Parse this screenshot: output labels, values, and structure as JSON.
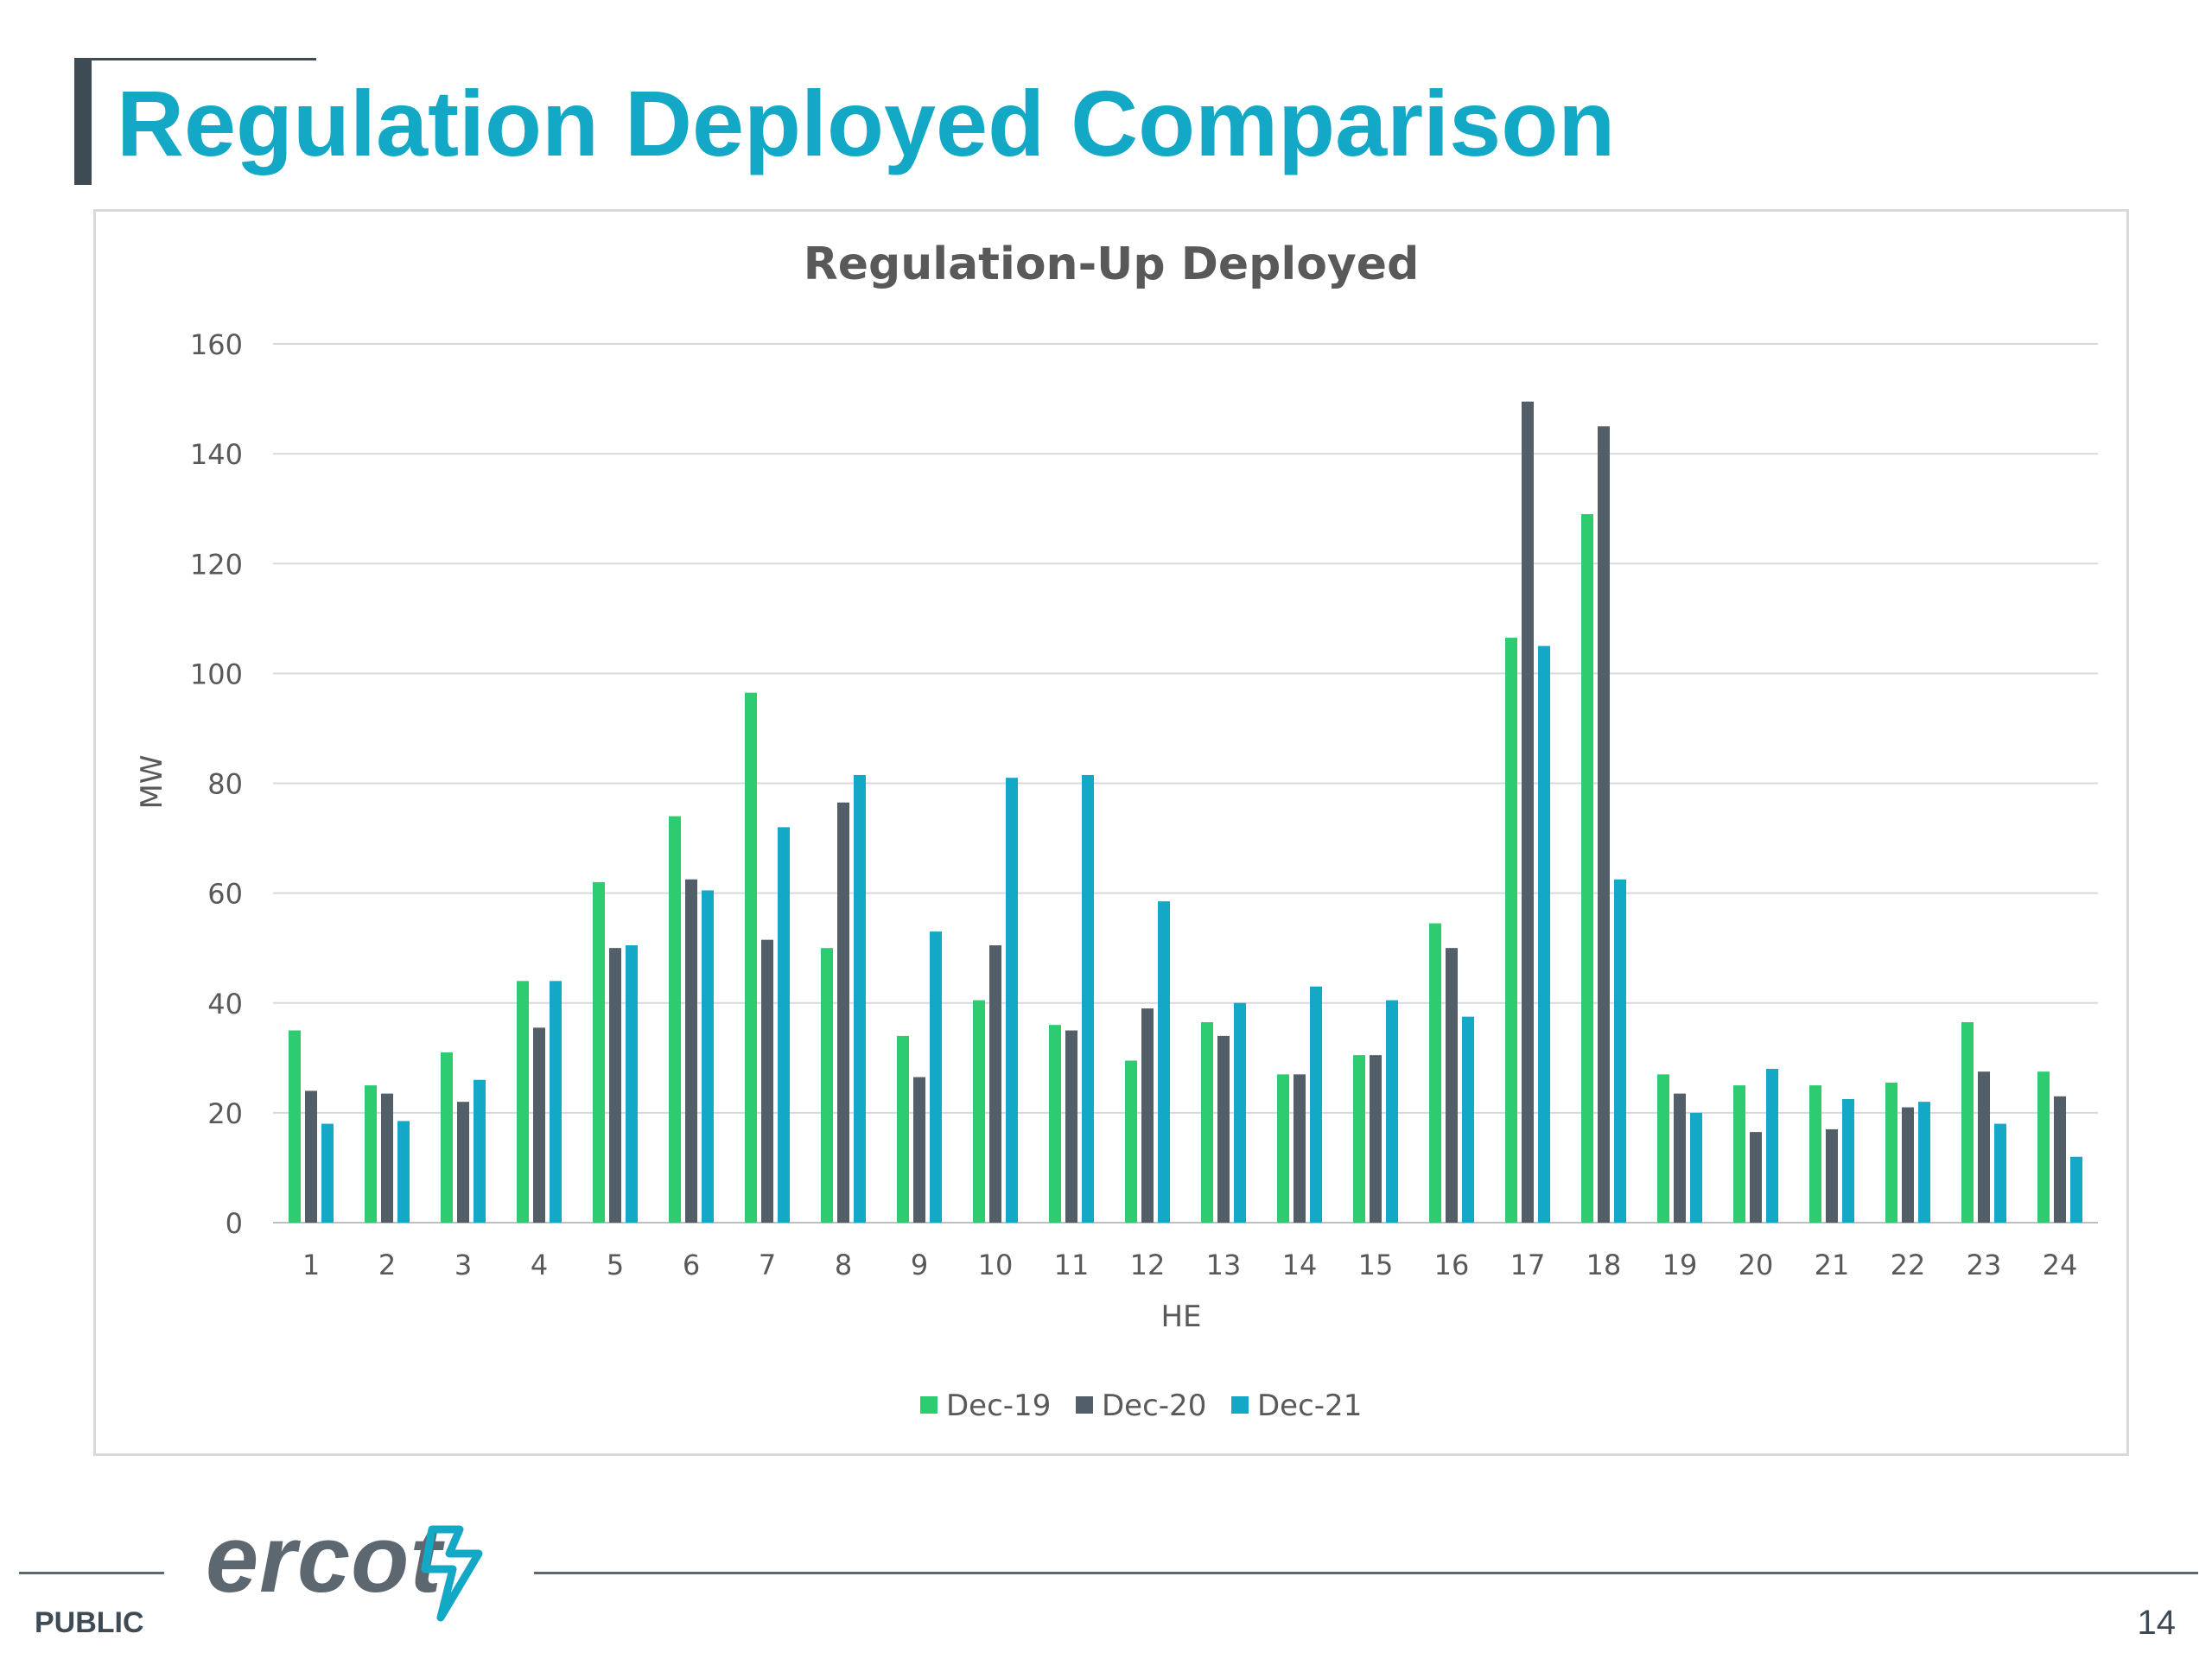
{
  "slide": {
    "title": "Regulation Deployed Comparison",
    "footer_label": "PUBLIC",
    "page_number": "14",
    "logo_text": "ercot",
    "title_color": "#12a8c6",
    "footer_color": "#5d6770"
  },
  "chart_data": {
    "type": "bar",
    "title": "Regulation-Up Deployed",
    "xlabel": "HE",
    "ylabel": "MW",
    "ylim": [
      0,
      160
    ],
    "yticks": [
      0,
      20,
      40,
      60,
      80,
      100,
      120,
      140,
      160
    ],
    "grid": true,
    "legend_position": "bottom",
    "categories": [
      "1",
      "2",
      "3",
      "4",
      "5",
      "6",
      "7",
      "8",
      "9",
      "10",
      "11",
      "12",
      "13",
      "14",
      "15",
      "16",
      "17",
      "18",
      "19",
      "20",
      "21",
      "22",
      "23",
      "24"
    ],
    "series": [
      {
        "name": "Dec-19",
        "color": "#2ecc71",
        "values": [
          35,
          25,
          31,
          44,
          62,
          74,
          96.5,
          50,
          34,
          40.5,
          36,
          29.5,
          36.5,
          27,
          30.5,
          54.5,
          106.5,
          129,
          27,
          25,
          25,
          25.5,
          36.5,
          27.5
        ]
      },
      {
        "name": "Dec-20",
        "color": "#525f69",
        "values": [
          24,
          23.5,
          22,
          35.5,
          50,
          62.5,
          51.5,
          76.5,
          26.5,
          50.5,
          35,
          39,
          34,
          27,
          30.5,
          50,
          149.5,
          145,
          23.5,
          16.5,
          17,
          21,
          27.5,
          23
        ]
      },
      {
        "name": "Dec-21",
        "color": "#12a8c6",
        "values": [
          18,
          18.5,
          26,
          44,
          50.5,
          60.5,
          72,
          81.5,
          53,
          81,
          81.5,
          58.5,
          40,
          43,
          40.5,
          37.5,
          105,
          62.5,
          20,
          28,
          22.5,
          22,
          18,
          12
        ]
      }
    ]
  }
}
